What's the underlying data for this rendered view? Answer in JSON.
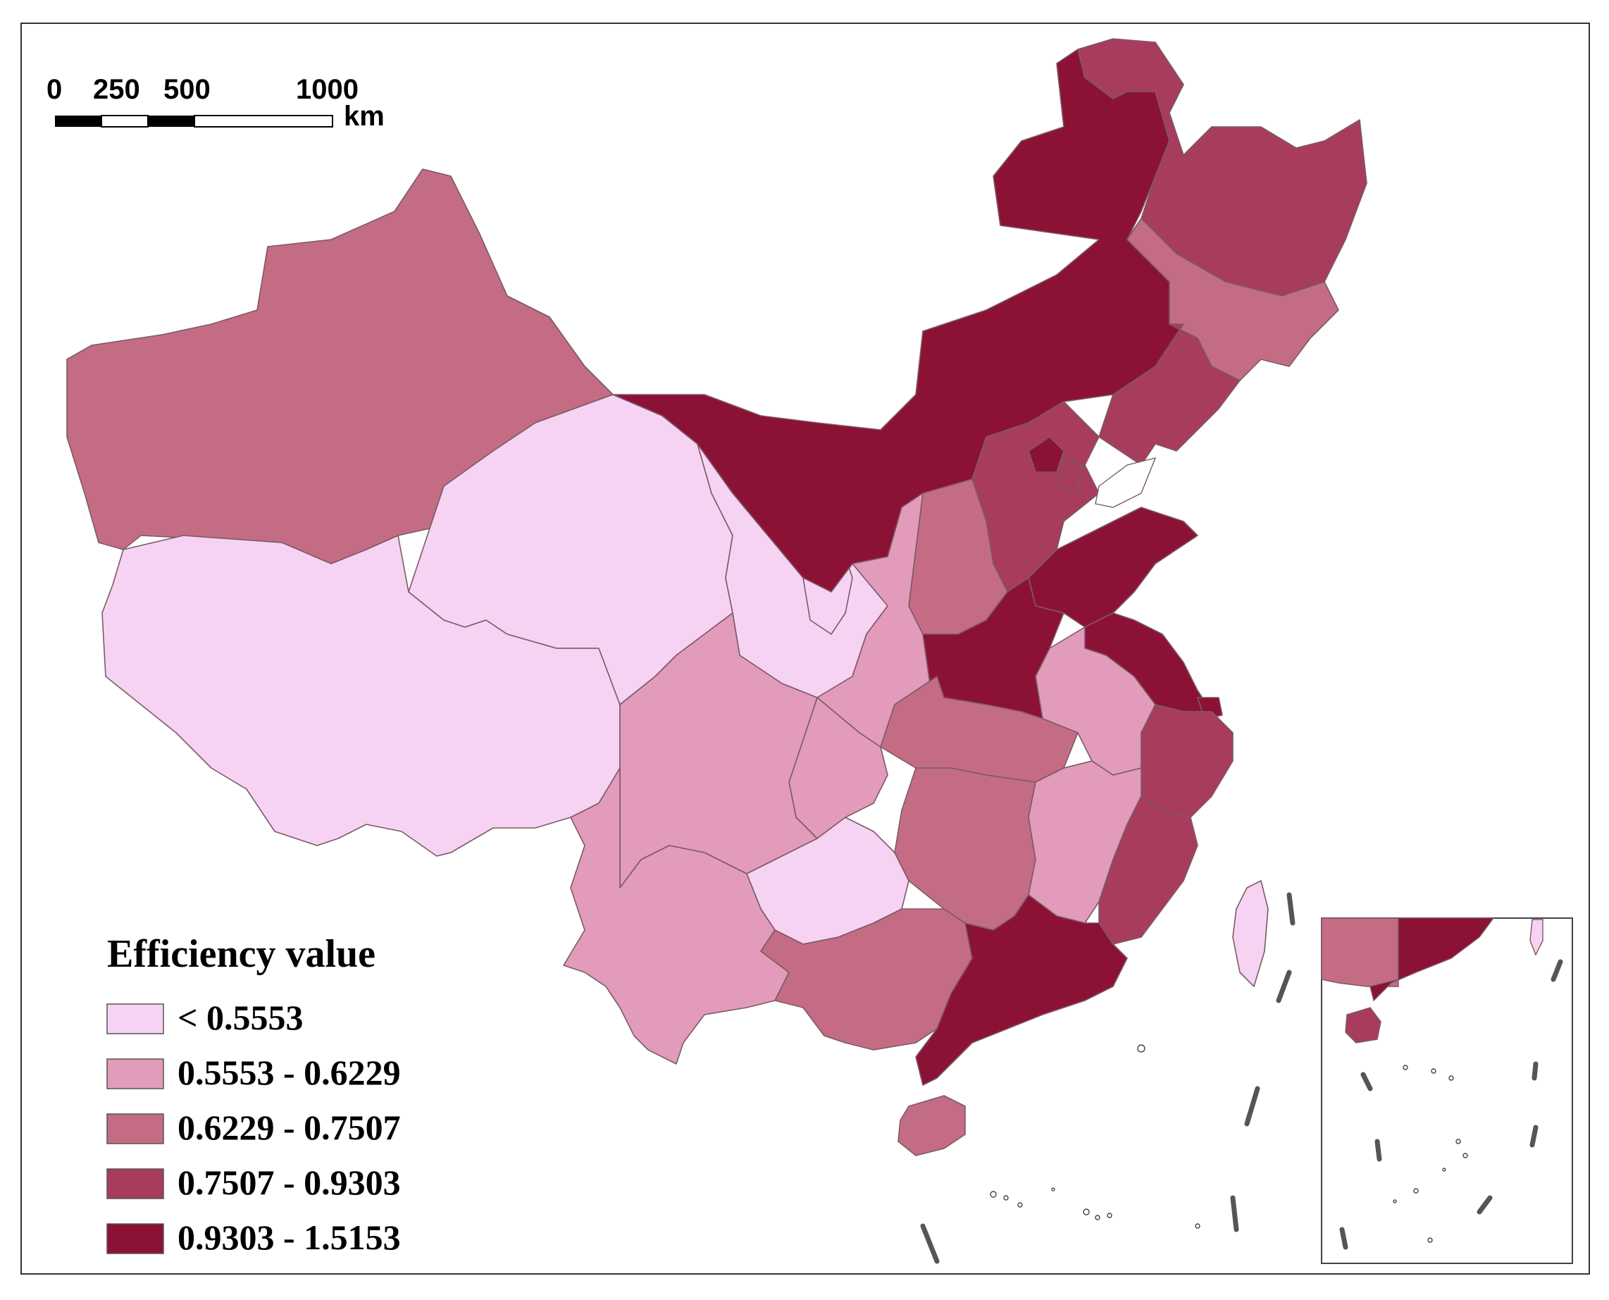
{
  "map": {
    "scale_bar": {
      "labels": [
        "0",
        "250",
        "500",
        "1000"
      ],
      "unit": "km"
    },
    "legend": {
      "title": "Efficiency value",
      "items": [
        {
          "label": "< 0.5553",
          "color": "#f7d3f3"
        },
        {
          "label": "0.5553 - 0.6229",
          "color": "#e29bba"
        },
        {
          "label": "0.6229 - 0.7507",
          "color": "#c56c85"
        },
        {
          "label": "0.7507 - 0.9303",
          "color": "#a83c5d"
        },
        {
          "label": "0.9303 - 1.5153",
          "color": "#8c1235"
        }
      ]
    },
    "regions": [
      {
        "id": "xinjiang",
        "class": 2
      },
      {
        "id": "tibet",
        "class": 0
      },
      {
        "id": "qinghai",
        "class": 0
      },
      {
        "id": "gansu",
        "class": 0
      },
      {
        "id": "ningxia",
        "class": 0
      },
      {
        "id": "inner-mongolia",
        "class": 4
      },
      {
        "id": "heilongjiang",
        "class": 3
      },
      {
        "id": "jilin",
        "class": 2
      },
      {
        "id": "liaoning",
        "class": 3
      },
      {
        "id": "beijing",
        "class": 4
      },
      {
        "id": "tianjin",
        "class": 3
      },
      {
        "id": "hebei",
        "class": 3
      },
      {
        "id": "shanxi",
        "class": 2
      },
      {
        "id": "shaanxi",
        "class": 1
      },
      {
        "id": "shandong",
        "class": 4
      },
      {
        "id": "henan",
        "class": 4
      },
      {
        "id": "jiangsu",
        "class": 4
      },
      {
        "id": "anhui",
        "class": 1
      },
      {
        "id": "shanghai",
        "class": 4
      },
      {
        "id": "zhejiang",
        "class": 3
      },
      {
        "id": "hubei",
        "class": 2
      },
      {
        "id": "chongqing",
        "class": 1
      },
      {
        "id": "sichuan",
        "class": 1
      },
      {
        "id": "yunnan",
        "class": 1
      },
      {
        "id": "guizhou",
        "class": 0
      },
      {
        "id": "hunan",
        "class": 2
      },
      {
        "id": "jiangxi",
        "class": 1
      },
      {
        "id": "fujian",
        "class": 3
      },
      {
        "id": "guangdong",
        "class": 4
      },
      {
        "id": "guangxi",
        "class": 2
      },
      {
        "id": "hainan",
        "class": 2
      },
      {
        "id": "taiwan",
        "class": 0
      }
    ]
  }
}
